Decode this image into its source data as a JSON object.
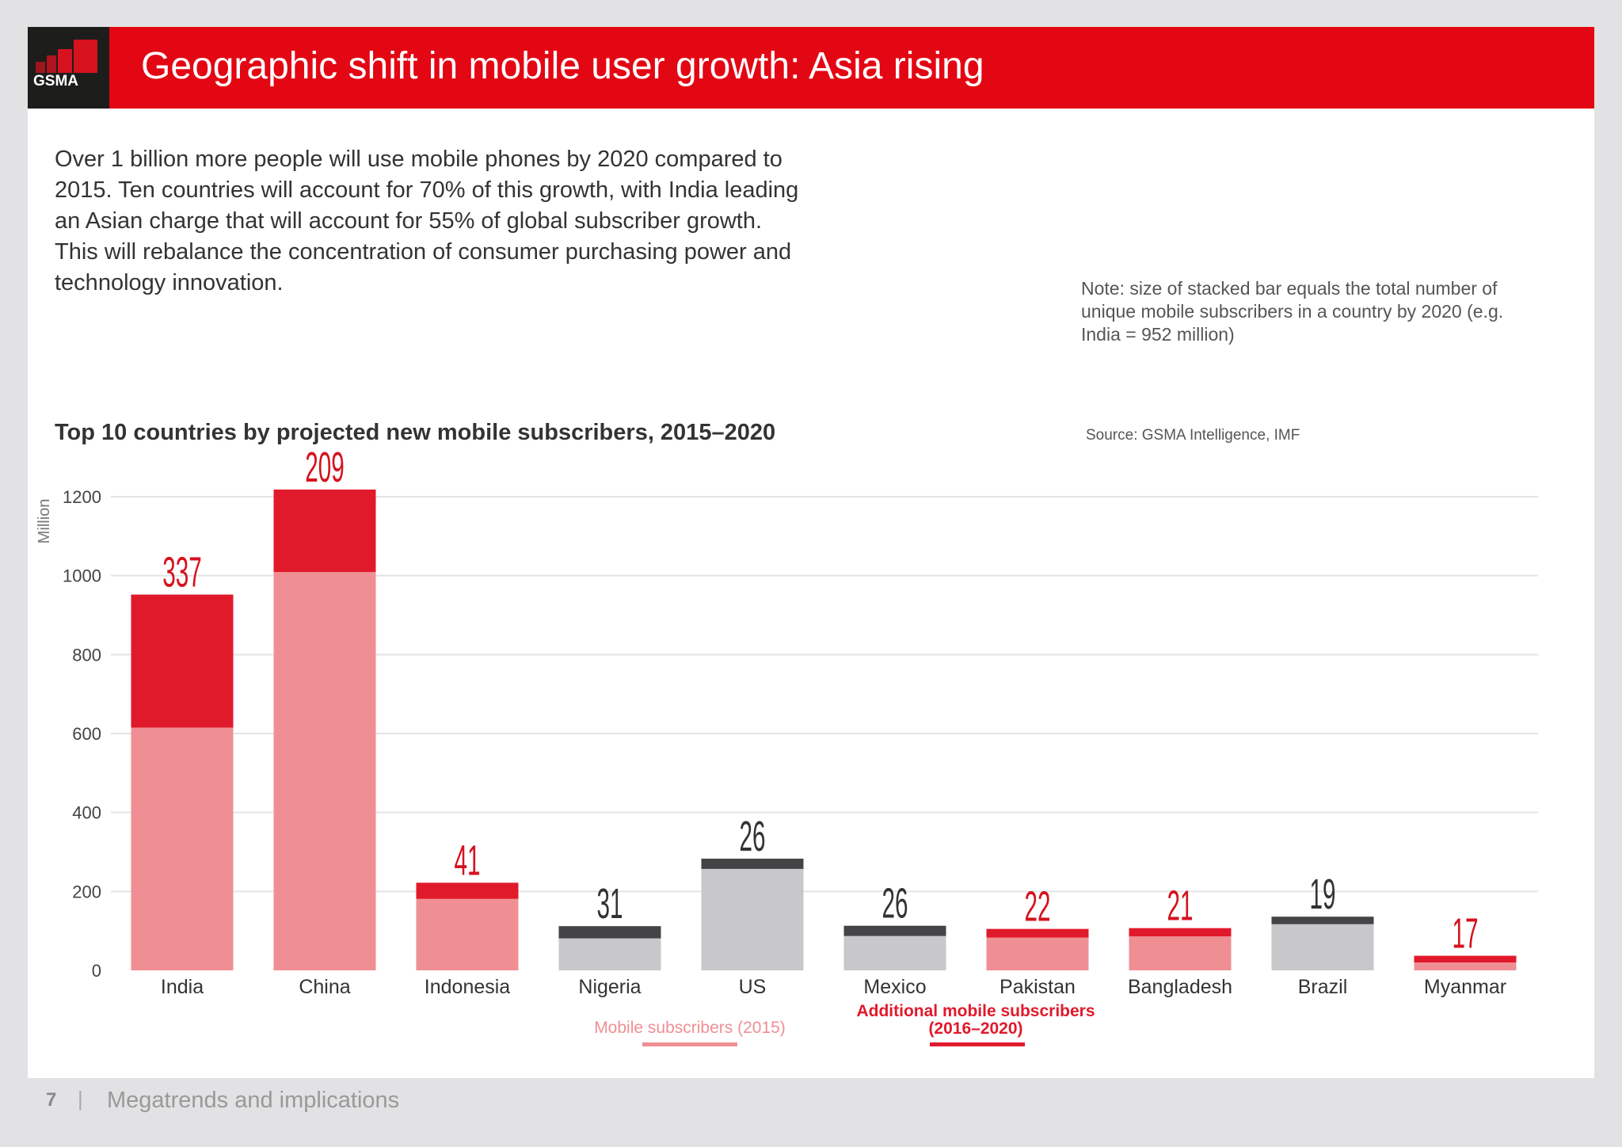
{
  "header": {
    "title": "Geographic shift in mobile user growth: Asia rising",
    "logo_text": "GSMA"
  },
  "intro": "Over 1 billion more people will use mobile phones by 2020 compared to 2015. Ten countries will account for 70% of this growth, with India leading an Asian charge that will account for 55% of global subscriber growth. This will rebalance the concentration of consumer purchasing power and technology innovation.",
  "note": "Note: size of stacked bar equals the total number of unique mobile subscribers in a country by 2020 (e.g. India = 952 million)",
  "source": "Source: GSMA Intelligence, IMF",
  "footer": {
    "page": "7",
    "sep": "|",
    "section": "Megatrends and implications"
  },
  "chart_data": {
    "type": "bar",
    "stacked": true,
    "title": "Top 10 countries by projected new mobile subscribers, 2015–2020",
    "ylabel": "Million",
    "ylim": [
      0,
      1200
    ],
    "yticks": [
      0,
      200,
      400,
      600,
      800,
      1000,
      1200
    ],
    "grid": true,
    "categories": [
      "India",
      "China",
      "Indonesia",
      "Nigeria",
      "US",
      "Mexico",
      "Pakistan",
      "Bangladesh",
      "Brazil",
      "Myanmar"
    ],
    "asia": [
      true,
      true,
      true,
      false,
      false,
      false,
      true,
      true,
      false,
      true
    ],
    "series": [
      {
        "name": "Mobile subscribers (2015)",
        "values": [
          615,
          1009,
          181,
          81,
          257,
          87,
          83,
          86,
          117,
          20
        ]
      },
      {
        "name": "Additional mobile subscribers (2016–2020)",
        "values": [
          337,
          209,
          41,
          31,
          26,
          26,
          22,
          21,
          19,
          17
        ]
      }
    ],
    "data_labels": [
      "337",
      "209",
      "41",
      "31",
      "26",
      "26",
      "22",
      "21",
      "19",
      "17"
    ],
    "colors": {
      "asia_base": "#ef8f94",
      "asia_add": "#e01a2b",
      "other_base": "#c8c7ca",
      "other_add": "#444346",
      "legend_base": "#ef8f94",
      "legend_add": "#e01a2b"
    }
  }
}
